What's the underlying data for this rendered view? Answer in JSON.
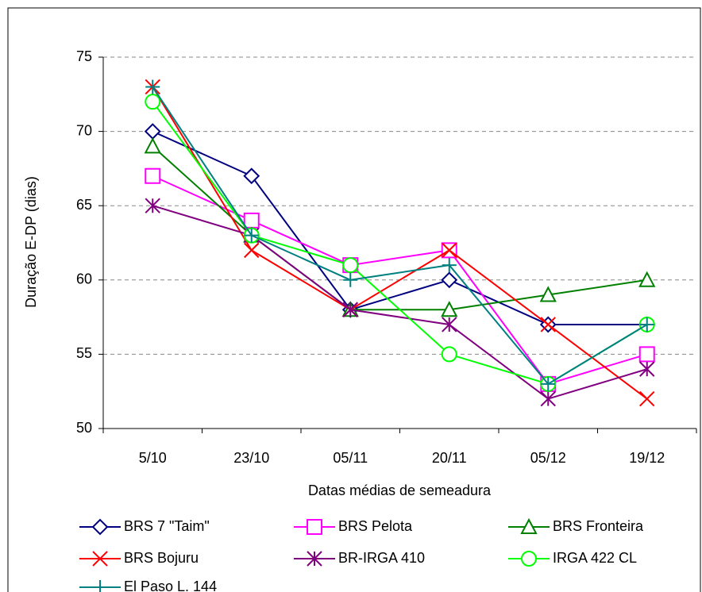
{
  "chart_data": {
    "type": "line",
    "y_label": "Duração E-DP (dias)",
    "x_label": "Datas médias de semeadura",
    "categories": [
      "5/10",
      "23/10",
      "05/11",
      "20/11",
      "05/12",
      "19/12"
    ],
    "ylim": [
      50,
      75
    ],
    "yticks": [
      50,
      55,
      60,
      65,
      70,
      75
    ],
    "grid": true,
    "series": [
      {
        "name": "BRS 7 \"Taim\"",
        "color": "#000080",
        "marker": "diamond",
        "values": [
          70,
          67,
          58,
          60,
          57,
          57
        ]
      },
      {
        "name": "BRS Pelota",
        "color": "#ff00ff",
        "marker": "square",
        "values": [
          67,
          64,
          61,
          62,
          53,
          55
        ]
      },
      {
        "name": "BRS Fronteira",
        "color": "#008000",
        "marker": "triangle",
        "values": [
          69,
          63,
          58,
          58,
          59,
          60
        ]
      },
      {
        "name": "BRS Bojuru",
        "color": "#ff0000",
        "marker": "x",
        "values": [
          73,
          62,
          58,
          62,
          57,
          52
        ]
      },
      {
        "name": "BR-IRGA 410",
        "color": "#800080",
        "marker": "star",
        "values": [
          65,
          63,
          58,
          57,
          52,
          54
        ]
      },
      {
        "name": "IRGA 422 CL",
        "color": "#00ff00",
        "marker": "circle",
        "values": [
          72,
          63,
          61,
          55,
          53,
          57
        ]
      },
      {
        "name": "El Paso L. 144",
        "color": "#008080",
        "marker": "plus",
        "values": [
          73,
          63,
          60,
          61,
          53,
          57
        ]
      }
    ]
  }
}
